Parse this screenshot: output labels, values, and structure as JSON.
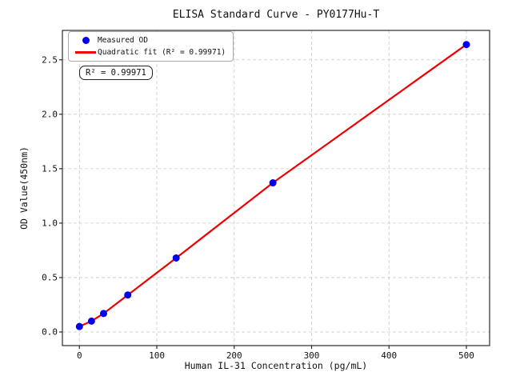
{
  "figure": {
    "title": "ELISA Standard Curve - PY0177Hu-T",
    "annotation": "R² = 0.99971"
  },
  "chart_data": {
    "type": "scatter",
    "title": "ELISA Standard Curve - PY0177Hu-T",
    "xlabel": "Human IL-31 Concentration (pg/mL)",
    "ylabel": "OD Value(450nm)",
    "series": [
      {
        "name": "Measured OD",
        "type": "scatter",
        "color": "#0000ee",
        "x": [
          0,
          15.6,
          31.25,
          62.5,
          125,
          250,
          500
        ],
        "y": [
          0.05,
          0.1,
          0.17,
          0.34,
          0.68,
          1.37,
          2.64
        ]
      },
      {
        "name": "Quadratic fit (R² = 0.99971)",
        "type": "line",
        "color": "#ee0000",
        "x": [
          0,
          15.6,
          31.25,
          62.5,
          125,
          250,
          500
        ],
        "y": [
          0.05,
          0.1,
          0.17,
          0.34,
          0.68,
          1.37,
          2.64
        ]
      }
    ],
    "r_squared": 0.99971,
    "annotation_text": "R² = 0.99971",
    "xticks": {
      "values": [
        0,
        100,
        200,
        300,
        400,
        500
      ],
      "labels": [
        "0",
        "100",
        "200",
        "300",
        "400",
        "500"
      ]
    },
    "yticks": {
      "values": [
        0.0,
        0.5,
        1.0,
        1.5,
        2.0,
        2.5
      ],
      "labels": [
        "0.0",
        "0.5",
        "1.0",
        "1.5",
        "2.0",
        "2.5"
      ]
    },
    "xlim": [
      -22,
      530
    ],
    "ylim": [
      -0.125,
      2.77
    ],
    "grid": true,
    "legend_position": "upper left",
    "colors": {
      "points": "#0000ee",
      "fit_line": "#ee0000",
      "grid": "#c9c9c9",
      "spine": "#2b2b2b",
      "background": "#ffffff"
    }
  },
  "legend": {
    "items": [
      {
        "label": "Measured OD",
        "marker": "circle",
        "color": "#0000ee"
      },
      {
        "label": "Quadratic fit (R² = 0.99971)",
        "marker": "line",
        "color": "#ee0000"
      }
    ]
  }
}
